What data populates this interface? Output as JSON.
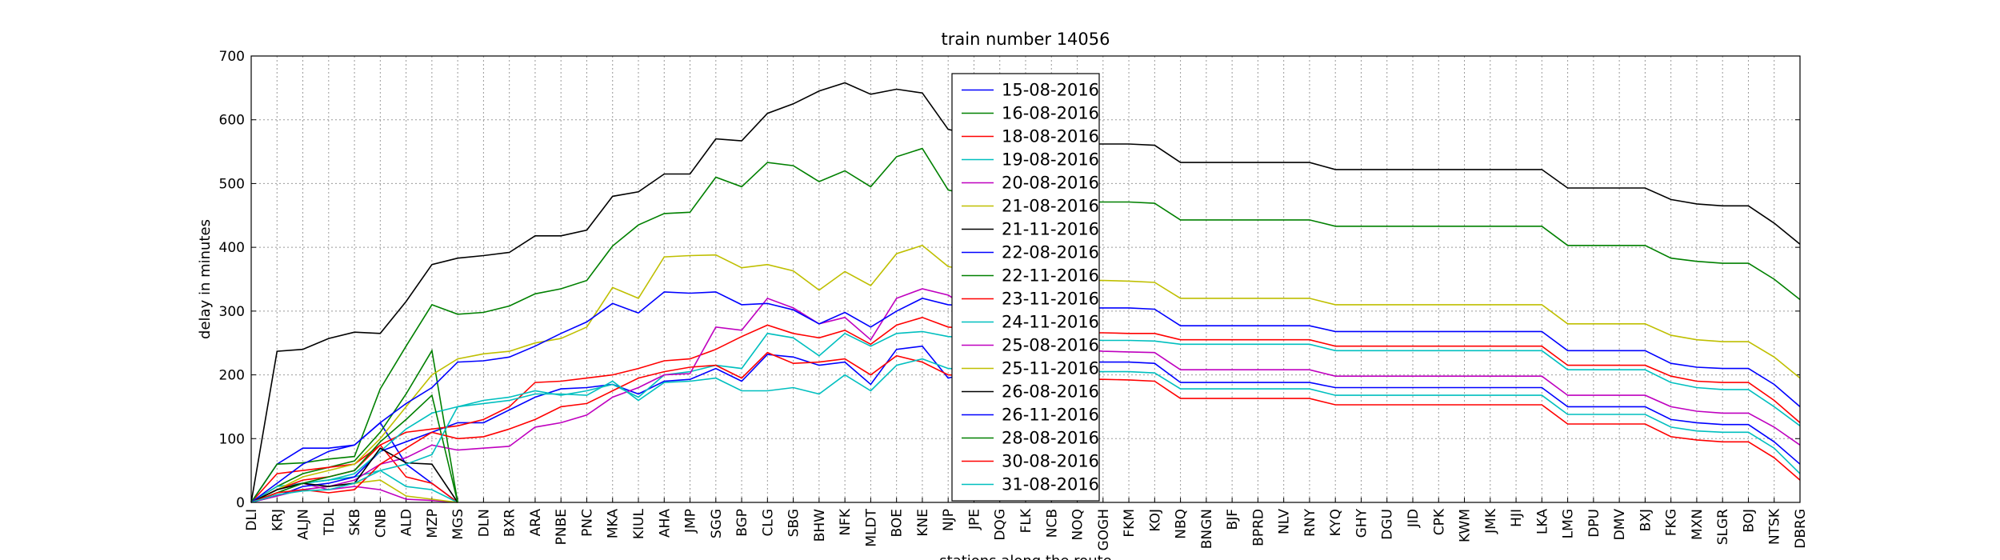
{
  "chart_data": {
    "type": "line",
    "title": "train number 14056",
    "x_label": "stations along the route",
    "y_label": "delay in minutes",
    "categories": [
      "DLI",
      "KRJ",
      "ALJN",
      "TDL",
      "SKB",
      "CNB",
      "ALD",
      "MZP",
      "MGS",
      "DLN",
      "BXR",
      "ARA",
      "PNBE",
      "PNC",
      "MKA",
      "KIUL",
      "AHA",
      "JMP",
      "SGG",
      "BGP",
      "CLG",
      "SBG",
      "BHW",
      "NFK",
      "MLDT",
      "BOE",
      "KNE",
      "NJP",
      "JPE",
      "DQG",
      "FLK",
      "NCB",
      "NOQ",
      "GOGH",
      "FKM",
      "KOJ",
      "NBQ",
      "BNGN",
      "BJF",
      "BPRD",
      "NLV",
      "RNY",
      "KYQ",
      "GHY",
      "DGU",
      "JID",
      "CPK",
      "KWM",
      "JMK",
      "HJI",
      "LKA",
      "LMG",
      "DPU",
      "DMV",
      "BXJ",
      "FKG",
      "MXN",
      "SLGR",
      "BOJ",
      "NTSK",
      "DBRG"
    ],
    "ylim": [
      0,
      700
    ],
    "yticks": [
      0,
      100,
      200,
      300,
      400,
      500,
      600,
      700
    ],
    "grid": true,
    "legend_loc": "upper center",
    "series": [
      {
        "name": "15-08-2016",
        "color": "#0000ff",
        "values": [
          0,
          60,
          85,
          85,
          90,
          125,
          60,
          30,
          0,
          null,
          null,
          null,
          null,
          null,
          null,
          null,
          null,
          null,
          null,
          null,
          null,
          null,
          null,
          null,
          null,
          null,
          null,
          null,
          null,
          null,
          null,
          null,
          null,
          null,
          null,
          null,
          null,
          null,
          null,
          null,
          null,
          null,
          null,
          null,
          null,
          null,
          null,
          null,
          null,
          null,
          null,
          null,
          null,
          null,
          null,
          null,
          null,
          null,
          null,
          null,
          null
        ]
      },
      {
        "name": "16-08-2016",
        "color": "#008000",
        "values": [
          0,
          25,
          45,
          55,
          65,
          110,
          170,
          238,
          0,
          null,
          null,
          null,
          null,
          null,
          null,
          null,
          null,
          null,
          null,
          null,
          null,
          null,
          null,
          null,
          null,
          null,
          null,
          null,
          null,
          null,
          null,
          null,
          null,
          null,
          null,
          null,
          null,
          null,
          null,
          null,
          null,
          null,
          null,
          null,
          null,
          null,
          null,
          null,
          null,
          null,
          null,
          null,
          null,
          null,
          null,
          null,
          null,
          null,
          null,
          null,
          null
        ]
      },
      {
        "name": "18-08-2016",
        "color": "#ff0000",
        "values": [
          0,
          45,
          50,
          55,
          60,
          90,
          40,
          30,
          0,
          null,
          null,
          null,
          null,
          null,
          null,
          null,
          null,
          null,
          null,
          null,
          null,
          null,
          null,
          null,
          null,
          null,
          null,
          null,
          null,
          null,
          null,
          null,
          null,
          null,
          null,
          null,
          null,
          null,
          null,
          null,
          null,
          null,
          null,
          null,
          null,
          null,
          null,
          null,
          null,
          null,
          null,
          null,
          null,
          null,
          null,
          null,
          null,
          null,
          null,
          null,
          null
        ]
      },
      {
        "name": "19-08-2016",
        "color": "#00bfbf",
        "values": [
          0,
          25,
          30,
          35,
          40,
          50,
          25,
          20,
          0,
          null,
          null,
          null,
          null,
          null,
          null,
          null,
          null,
          null,
          null,
          null,
          null,
          null,
          null,
          null,
          null,
          null,
          null,
          null,
          null,
          null,
          null,
          null,
          null,
          null,
          null,
          null,
          null,
          null,
          null,
          null,
          null,
          null,
          null,
          null,
          null,
          null,
          null,
          null,
          null,
          null,
          null,
          null,
          null,
          null,
          null,
          null,
          null,
          null,
          null,
          null,
          null
        ]
      },
      {
        "name": "20-08-2016",
        "color": "#bf00bf",
        "values": [
          0,
          20,
          30,
          20,
          25,
          20,
          5,
          3,
          0,
          null,
          null,
          null,
          null,
          null,
          null,
          null,
          null,
          null,
          null,
          null,
          null,
          null,
          null,
          null,
          null,
          null,
          null,
          null,
          null,
          null,
          null,
          null,
          null,
          null,
          null,
          null,
          null,
          null,
          null,
          null,
          null,
          null,
          null,
          null,
          null,
          null,
          null,
          null,
          null,
          null,
          null,
          null,
          null,
          null,
          null,
          null,
          null,
          null,
          null,
          null,
          null
        ]
      },
      {
        "name": "21-08-2016",
        "color": "#bfbf00",
        "values": [
          0,
          10,
          20,
          25,
          30,
          35,
          10,
          5,
          0,
          null,
          null,
          null,
          null,
          null,
          null,
          null,
          null,
          null,
          null,
          null,
          null,
          null,
          null,
          null,
          null,
          null,
          null,
          null,
          null,
          null,
          null,
          null,
          null,
          null,
          null,
          null,
          null,
          null,
          null,
          null,
          null,
          null,
          null,
          null,
          null,
          null,
          null,
          null,
          null,
          null,
          null,
          null,
          null,
          null,
          null,
          null,
          null,
          null,
          null,
          null,
          null
        ]
      },
      {
        "name": "21-11-2016",
        "color": "#000000",
        "values": [
          0,
          237,
          240,
          257,
          267,
          265,
          315,
          373,
          383,
          387,
          392,
          418,
          418,
          427,
          480,
          487,
          515,
          515,
          570,
          567,
          610,
          625,
          645,
          658,
          640,
          648,
          642,
          585,
          575,
          570,
          566,
          563,
          562,
          562,
          562,
          560,
          533,
          533,
          533,
          533,
          533,
          533,
          522,
          522,
          522,
          522,
          522,
          522,
          522,
          522,
          522,
          493,
          493,
          493,
          493,
          475,
          468,
          465,
          465,
          438,
          405
        ]
      },
      {
        "name": "22-08-2016",
        "color": "#0000ff",
        "values": [
          0,
          10,
          25,
          30,
          40,
          80,
          95,
          110,
          125,
          125,
          145,
          165,
          178,
          180,
          185,
          170,
          190,
          193,
          210,
          190,
          232,
          228,
          215,
          220,
          185,
          240,
          245,
          195,
          205,
          210,
          215,
          218,
          220,
          220,
          220,
          218,
          188,
          188,
          188,
          188,
          188,
          188,
          180,
          180,
          180,
          180,
          180,
          180,
          180,
          180,
          180,
          150,
          150,
          150,
          150,
          130,
          125,
          122,
          122,
          95,
          60
        ]
      },
      {
        "name": "22-11-2016",
        "color": "#008000",
        "values": [
          0,
          60,
          62,
          68,
          72,
          178,
          245,
          310,
          295,
          298,
          308,
          327,
          335,
          348,
          402,
          435,
          453,
          455,
          510,
          495,
          533,
          528,
          503,
          520,
          495,
          542,
          555,
          490,
          480,
          475,
          473,
          472,
          471,
          471,
          471,
          469,
          443,
          443,
          443,
          443,
          443,
          443,
          433,
          433,
          433,
          433,
          433,
          433,
          433,
          433,
          433,
          403,
          403,
          403,
          403,
          383,
          378,
          375,
          375,
          350,
          318
        ]
      },
      {
        "name": "23-11-2016",
        "color": "#ff0000",
        "values": [
          0,
          20,
          35,
          40,
          50,
          90,
          110,
          115,
          120,
          130,
          150,
          188,
          190,
          195,
          200,
          210,
          222,
          225,
          240,
          260,
          278,
          265,
          258,
          270,
          248,
          278,
          290,
          275,
          272,
          270,
          268,
          267,
          266,
          266,
          265,
          265,
          255,
          255,
          255,
          255,
          255,
          255,
          245,
          245,
          245,
          245,
          245,
          245,
          245,
          245,
          245,
          215,
          215,
          215,
          215,
          198,
          190,
          188,
          188,
          160,
          125
        ]
      },
      {
        "name": "24-11-2016",
        "color": "#00bfbf",
        "values": [
          0,
          15,
          30,
          35,
          45,
          80,
          115,
          140,
          150,
          160,
          165,
          175,
          168,
          175,
          185,
          165,
          200,
          205,
          215,
          210,
          265,
          258,
          230,
          265,
          245,
          265,
          268,
          260,
          258,
          256,
          255,
          255,
          255,
          254,
          254,
          253,
          248,
          248,
          248,
          248,
          248,
          248,
          238,
          238,
          238,
          238,
          238,
          238,
          238,
          238,
          238,
          208,
          208,
          208,
          208,
          188,
          180,
          177,
          177,
          150,
          120
        ]
      },
      {
        "name": "25-08-2016",
        "color": "#bf00bf",
        "values": [
          0,
          10,
          20,
          25,
          35,
          60,
          70,
          90,
          82,
          85,
          88,
          118,
          125,
          137,
          165,
          180,
          200,
          202,
          275,
          270,
          320,
          305,
          280,
          290,
          255,
          320,
          335,
          325,
          300,
          280,
          260,
          245,
          240,
          237,
          236,
          235,
          208,
          208,
          208,
          208,
          208,
          208,
          198,
          198,
          198,
          198,
          198,
          198,
          198,
          198,
          198,
          168,
          168,
          168,
          168,
          150,
          143,
          140,
          140,
          118,
          90
        ]
      },
      {
        "name": "25-11-2016",
        "color": "#bfbf00",
        "values": [
          0,
          20,
          40,
          50,
          60,
          100,
          150,
          200,
          225,
          233,
          237,
          250,
          257,
          275,
          337,
          320,
          385,
          387,
          388,
          368,
          373,
          363,
          333,
          362,
          340,
          390,
          403,
          370,
          362,
          355,
          352,
          350,
          348,
          348,
          347,
          345,
          320,
          320,
          320,
          320,
          320,
          320,
          310,
          310,
          310,
          310,
          310,
          310,
          310,
          310,
          310,
          280,
          280,
          280,
          280,
          262,
          255,
          252,
          252,
          228,
          195
        ]
      },
      {
        "name": "26-08-2016",
        "color": "#000000",
        "values": [
          0,
          20,
          30,
          25,
          30,
          85,
          62,
          60,
          0,
          null,
          null,
          null,
          null,
          null,
          null,
          null,
          null,
          null,
          null,
          null,
          null,
          null,
          null,
          null,
          null,
          null,
          null,
          null,
          null,
          null,
          null,
          null,
          null,
          null,
          null,
          null,
          null,
          null,
          null,
          null,
          null,
          null,
          null,
          null,
          null,
          null,
          null,
          null,
          null,
          null,
          null,
          null,
          null,
          null,
          null,
          null,
          null,
          null,
          null,
          null,
          null
        ]
      },
      {
        "name": "26-11-2016",
        "color": "#0000ff",
        "values": [
          0,
          30,
          60,
          80,
          90,
          125,
          155,
          180,
          220,
          222,
          228,
          245,
          265,
          283,
          312,
          297,
          330,
          328,
          330,
          310,
          312,
          302,
          280,
          298,
          275,
          300,
          320,
          310,
          308,
          306,
          305,
          305,
          305,
          305,
          305,
          303,
          277,
          277,
          277,
          277,
          277,
          277,
          268,
          268,
          268,
          268,
          268,
          268,
          268,
          268,
          268,
          238,
          238,
          238,
          238,
          218,
          212,
          210,
          210,
          185,
          150
        ]
      },
      {
        "name": "28-08-2016",
        "color": "#008000",
        "values": [
          0,
          15,
          30,
          40,
          50,
          95,
          130,
          168,
          0,
          null,
          null,
          null,
          null,
          null,
          null,
          null,
          null,
          null,
          null,
          null,
          null,
          null,
          null,
          null,
          null,
          null,
          null,
          null,
          null,
          null,
          null,
          null,
          null,
          null,
          null,
          null,
          null,
          null,
          null,
          null,
          null,
          null,
          null,
          null,
          null,
          null,
          null,
          null,
          null,
          null,
          null,
          null,
          null,
          null,
          null,
          null,
          null,
          null,
          null,
          null,
          null
        ]
      },
      {
        "name": "30-08-2016",
        "color": "#ff0000",
        "values": [
          0,
          15,
          20,
          15,
          20,
          60,
          85,
          110,
          100,
          103,
          115,
          130,
          150,
          155,
          175,
          195,
          205,
          212,
          215,
          195,
          235,
          218,
          220,
          225,
          200,
          230,
          220,
          200,
          198,
          196,
          195,
          194,
          193,
          193,
          192,
          190,
          163,
          163,
          163,
          163,
          163,
          163,
          153,
          153,
          153,
          153,
          153,
          153,
          153,
          153,
          153,
          123,
          123,
          123,
          123,
          103,
          98,
          95,
          95,
          70,
          35
        ]
      },
      {
        "name": "31-08-2016",
        "color": "#00bfbf",
        "values": [
          0,
          12,
          18,
          20,
          30,
          50,
          60,
          75,
          150,
          155,
          160,
          170,
          170,
          168,
          190,
          160,
          188,
          190,
          195,
          175,
          175,
          180,
          170,
          200,
          175,
          215,
          225,
          210,
          208,
          207,
          206,
          206,
          205,
          205,
          205,
          203,
          178,
          178,
          178,
          178,
          178,
          178,
          168,
          168,
          168,
          168,
          168,
          168,
          168,
          168,
          168,
          138,
          138,
          138,
          138,
          118,
          112,
          110,
          110,
          85,
          45
        ]
      }
    ]
  }
}
